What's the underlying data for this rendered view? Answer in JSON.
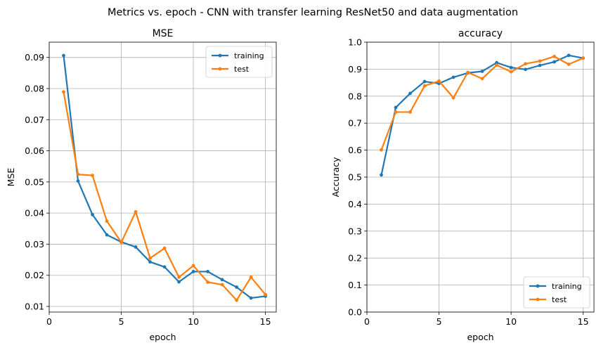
{
  "figure_title": "Metrics vs. epoch - CNN with transfer learning ResNet50 and data augmentation",
  "chart_data": [
    {
      "type": "line",
      "title": "MSE",
      "xlabel": "epoch",
      "ylabel": "MSE",
      "xlim": [
        0,
        15.75
      ],
      "ylim": [
        0.0082,
        0.0949
      ],
      "xticks": [
        0,
        5,
        10,
        15
      ],
      "yticks": [
        0.01,
        0.02,
        0.03,
        0.04,
        0.05,
        0.06,
        0.07,
        0.08,
        0.09
      ],
      "ytick_labels": [
        "0.01",
        "0.02",
        "0.03",
        "0.04",
        "0.05",
        "0.06",
        "0.07",
        "0.08",
        "0.09"
      ],
      "grid": true,
      "legend_position": "upper right",
      "x": [
        1,
        2,
        3,
        4,
        5,
        6,
        7,
        8,
        9,
        10,
        11,
        12,
        13,
        14,
        15
      ],
      "series": [
        {
          "name": "training",
          "color": "#1f77b4",
          "values": [
            0.0906,
            0.0503,
            0.0395,
            0.033,
            0.0307,
            0.0291,
            0.0243,
            0.0227,
            0.0179,
            0.0212,
            0.0212,
            0.0186,
            0.0162,
            0.0127,
            0.0133
          ]
        },
        {
          "name": "test",
          "color": "#ff7f0e",
          "values": [
            0.0789,
            0.0524,
            0.0521,
            0.0374,
            0.0306,
            0.0404,
            0.0255,
            0.0287,
            0.0194,
            0.0231,
            0.0178,
            0.017,
            0.012,
            0.0194,
            0.0138
          ]
        }
      ]
    },
    {
      "type": "line",
      "title": "accuracy",
      "xlabel": "epoch",
      "ylabel": "Accuracy",
      "xlim": [
        0,
        15.75
      ],
      "ylim": [
        0,
        1
      ],
      "xticks": [
        0,
        5,
        10,
        15
      ],
      "yticks": [
        0,
        0.1,
        0.2,
        0.3,
        0.4,
        0.5,
        0.6,
        0.7,
        0.8,
        0.9,
        1.0
      ],
      "ytick_labels": [
        "0.0",
        "0.1",
        "0.2",
        "0.3",
        "0.4",
        "0.5",
        "0.6",
        "0.7",
        "0.8",
        "0.9",
        "1.0"
      ],
      "grid": true,
      "legend_position": "lower right",
      "x": [
        1,
        2,
        3,
        4,
        5,
        6,
        7,
        8,
        9,
        10,
        11,
        12,
        13,
        14,
        15
      ],
      "series": [
        {
          "name": "training",
          "color": "#1f77b4",
          "values": [
            0.508,
            0.758,
            0.81,
            0.854,
            0.847,
            0.87,
            0.886,
            0.892,
            0.924,
            0.906,
            0.899,
            0.914,
            0.927,
            0.951,
            0.941
          ]
        },
        {
          "name": "test",
          "color": "#ff7f0e",
          "values": [
            0.601,
            0.741,
            0.741,
            0.838,
            0.856,
            0.794,
            0.888,
            0.865,
            0.915,
            0.89,
            0.92,
            0.93,
            0.947,
            0.918,
            0.941
          ]
        }
      ]
    }
  ]
}
